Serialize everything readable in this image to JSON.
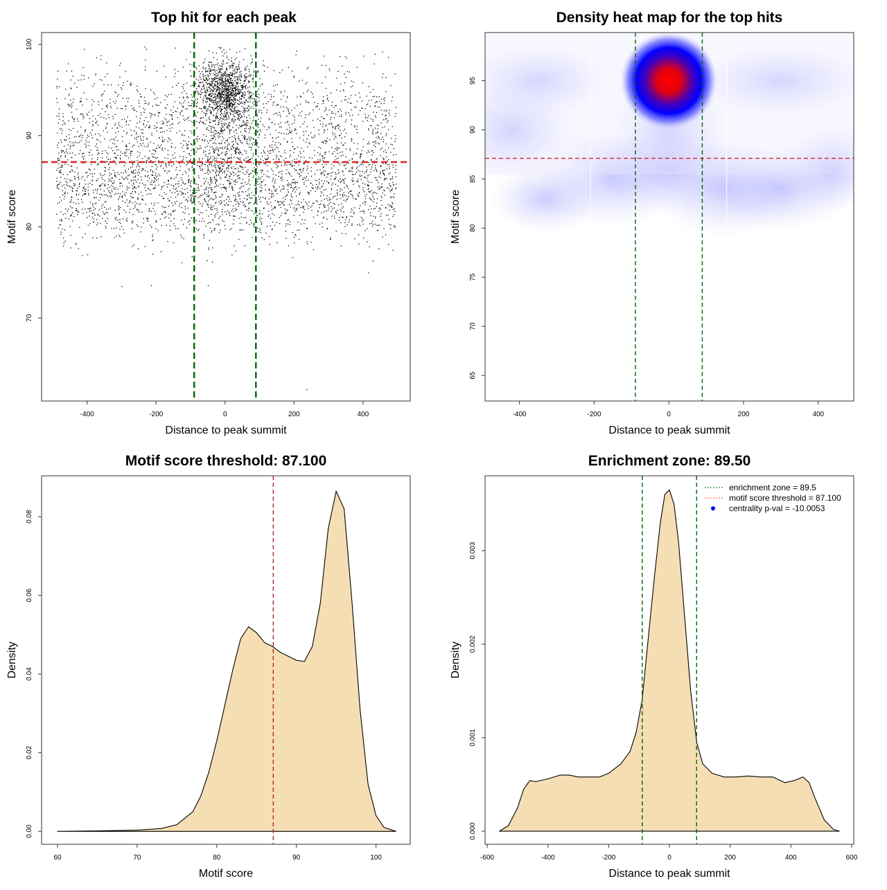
{
  "chart_data": [
    {
      "type": "scatter",
      "title": "Top hit for each peak",
      "xlabel": "Distance to peak summit",
      "ylabel": "Motif score",
      "xlim": [
        -532,
        537
      ],
      "ylim": [
        60.9,
        101.3
      ],
      "xticks": [
        -400,
        -200,
        0,
        200,
        400
      ],
      "yticks": [
        70,
        80,
        90,
        100
      ],
      "hlines": [
        {
          "y": 87.1,
          "color": "#e02020"
        }
      ],
      "vlines": [
        {
          "x": -89.5,
          "color": "#006400"
        },
        {
          "x": 89.5,
          "color": "#006400"
        }
      ],
      "point_color": "#000000",
      "grid": false
    },
    {
      "type": "heatmap",
      "title": "Density heat map for the top hits",
      "xlabel": "Distance to peak summit",
      "ylabel": "Motif score",
      "xlim": [
        -492,
        495
      ],
      "ylim": [
        62.4,
        99.9
      ],
      "xticks": [
        -400,
        -200,
        0,
        200,
        400
      ],
      "yticks": [
        65,
        70,
        75,
        80,
        85,
        90,
        95
      ],
      "peak": {
        "x": 0,
        "y": 95
      },
      "colors": {
        "low": "#ffffff",
        "mid": "#0000ff",
        "high": "#ff0000"
      },
      "hlines": [
        {
          "y": 87.1,
          "color": "#e02020"
        }
      ],
      "vlines": [
        {
          "x": -89.5,
          "color": "#006400"
        },
        {
          "x": 89.5,
          "color": "#006400"
        }
      ],
      "grid": false
    },
    {
      "type": "area",
      "title": "Motif score threshold: 87.100",
      "xlabel": "Motif score",
      "ylabel": "Density",
      "xlim": [
        58,
        104.3
      ],
      "ylim": [
        -0.0033,
        0.0904
      ],
      "xticks": [
        60,
        70,
        80,
        90,
        100
      ],
      "yticks": [
        "0.00",
        "0.02",
        "0.04",
        "0.06",
        "0.08"
      ],
      "fill": "#f5deb3",
      "x": [
        60,
        65,
        70,
        73,
        75,
        77,
        78,
        79,
        80,
        81,
        82,
        83,
        84,
        85,
        86,
        87,
        88,
        89,
        90,
        91,
        92,
        93,
        94,
        95,
        96,
        97,
        98,
        99,
        100,
        101,
        102.5
      ],
      "y": [
        0,
        0.0001,
        0.0003,
        0.0007,
        0.0017,
        0.005,
        0.009,
        0.015,
        0.023,
        0.032,
        0.041,
        0.049,
        0.052,
        0.0505,
        0.048,
        0.047,
        0.0455,
        0.0445,
        0.0435,
        0.0432,
        0.047,
        0.058,
        0.077,
        0.0865,
        0.082,
        0.058,
        0.031,
        0.012,
        0.004,
        0.001,
        0
      ],
      "vlines": [
        {
          "x": 87.1,
          "color": "#b22222"
        }
      ],
      "grid": false
    },
    {
      "type": "area",
      "title": "Enrichment zone: 89.50",
      "xlabel": "Distance to peak summit",
      "ylabel": "Density",
      "xlim": [
        -607,
        607
      ],
      "ylim": [
        -0.00014,
        0.0038
      ],
      "xticks": [
        -600,
        -400,
        -200,
        0,
        200,
        400,
        600
      ],
      "yticks": [
        "0.000",
        "0.001",
        "0.002",
        "0.003"
      ],
      "fill": "#f5deb3",
      "x": [
        -560,
        -530,
        -500,
        -480,
        -460,
        -440,
        -400,
        -360,
        -330,
        -300,
        -270,
        -230,
        -200,
        -160,
        -130,
        -110,
        -90,
        -70,
        -50,
        -30,
        -15,
        0,
        15,
        30,
        50,
        70,
        90,
        110,
        140,
        180,
        220,
        260,
        300,
        340,
        380,
        410,
        440,
        460,
        480,
        510,
        540,
        560
      ],
      "y": [
        0,
        6e-05,
        0.00025,
        0.00045,
        0.00054,
        0.00053,
        0.00056,
        0.0006,
        0.0006,
        0.00058,
        0.00058,
        0.00058,
        0.00062,
        0.00072,
        0.00085,
        0.00105,
        0.0014,
        0.00205,
        0.0027,
        0.0033,
        0.0036,
        0.00365,
        0.0035,
        0.0031,
        0.0023,
        0.0015,
        0.00095,
        0.00072,
        0.00062,
        0.00058,
        0.00058,
        0.00059,
        0.00058,
        0.00058,
        0.00052,
        0.00054,
        0.00058,
        0.00052,
        0.00035,
        0.00012,
        2e-05,
        0
      ],
      "vlines": [
        {
          "x": -89.5,
          "color": "#006400"
        },
        {
          "x": 89.5,
          "color": "#006400"
        }
      ],
      "legend": {
        "position": "top-right",
        "entries": [
          {
            "label": "enrichment zone = 89.5",
            "symbol": "dotted-line",
            "color": "#006400"
          },
          {
            "label": "motif score threshold = 87.100",
            "symbol": "dotted-line",
            "color": "#ff4040"
          },
          {
            "label": "centrality p-val = -10.0053",
            "symbol": "dot",
            "color": "#0000ff"
          }
        ]
      },
      "grid": false
    }
  ]
}
